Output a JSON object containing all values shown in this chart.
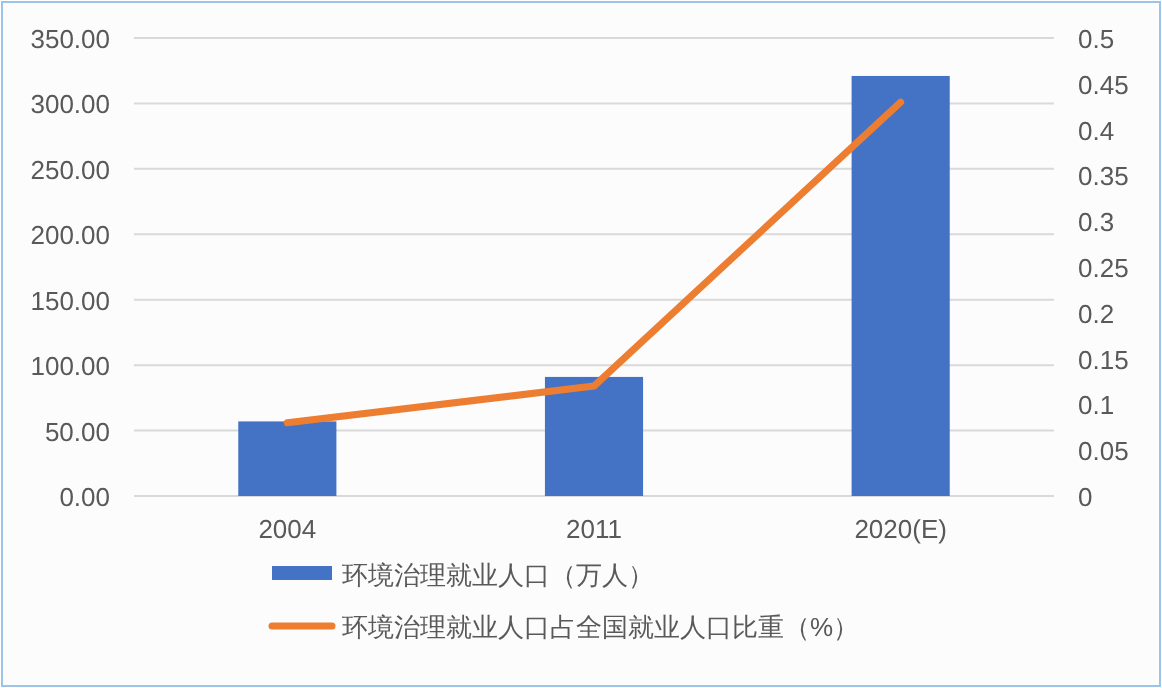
{
  "chart_data": {
    "type": "bar",
    "categories": [
      "2004",
      "2011",
      "2020(E)"
    ],
    "series": [
      {
        "name": "环境治理就业人口（万人）",
        "color": "#4472c4",
        "values": [
          57,
          91,
          321
        ]
      },
      {
        "name": "环境治理就业人口占全国就业人口比重（%）",
        "type": "line",
        "axis": "y2",
        "color": "#ed7d31",
        "values": [
          0.08,
          0.12,
          0.43
        ]
      }
    ],
    "ylim": [
      0,
      350
    ],
    "yticks": [
      {
        "value": 0,
        "label": "0.00"
      },
      {
        "value": 50,
        "label": "50.00"
      },
      {
        "value": 100,
        "label": "100.00"
      },
      {
        "value": 150,
        "label": "150.00"
      },
      {
        "value": 200,
        "label": "200.00"
      },
      {
        "value": 250,
        "label": "250.00"
      },
      {
        "value": 300,
        "label": "300.00"
      },
      {
        "value": 350,
        "label": "350.00"
      }
    ],
    "y2lim": [
      0,
      0.5
    ],
    "y2ticks": [
      0,
      0.05,
      0.1,
      0.15,
      0.2,
      0.25,
      0.3,
      0.35,
      0.4,
      0.45,
      0.5
    ],
    "grid": "y",
    "legend": "bottom",
    "marker": "none",
    "line_style": "solid"
  }
}
